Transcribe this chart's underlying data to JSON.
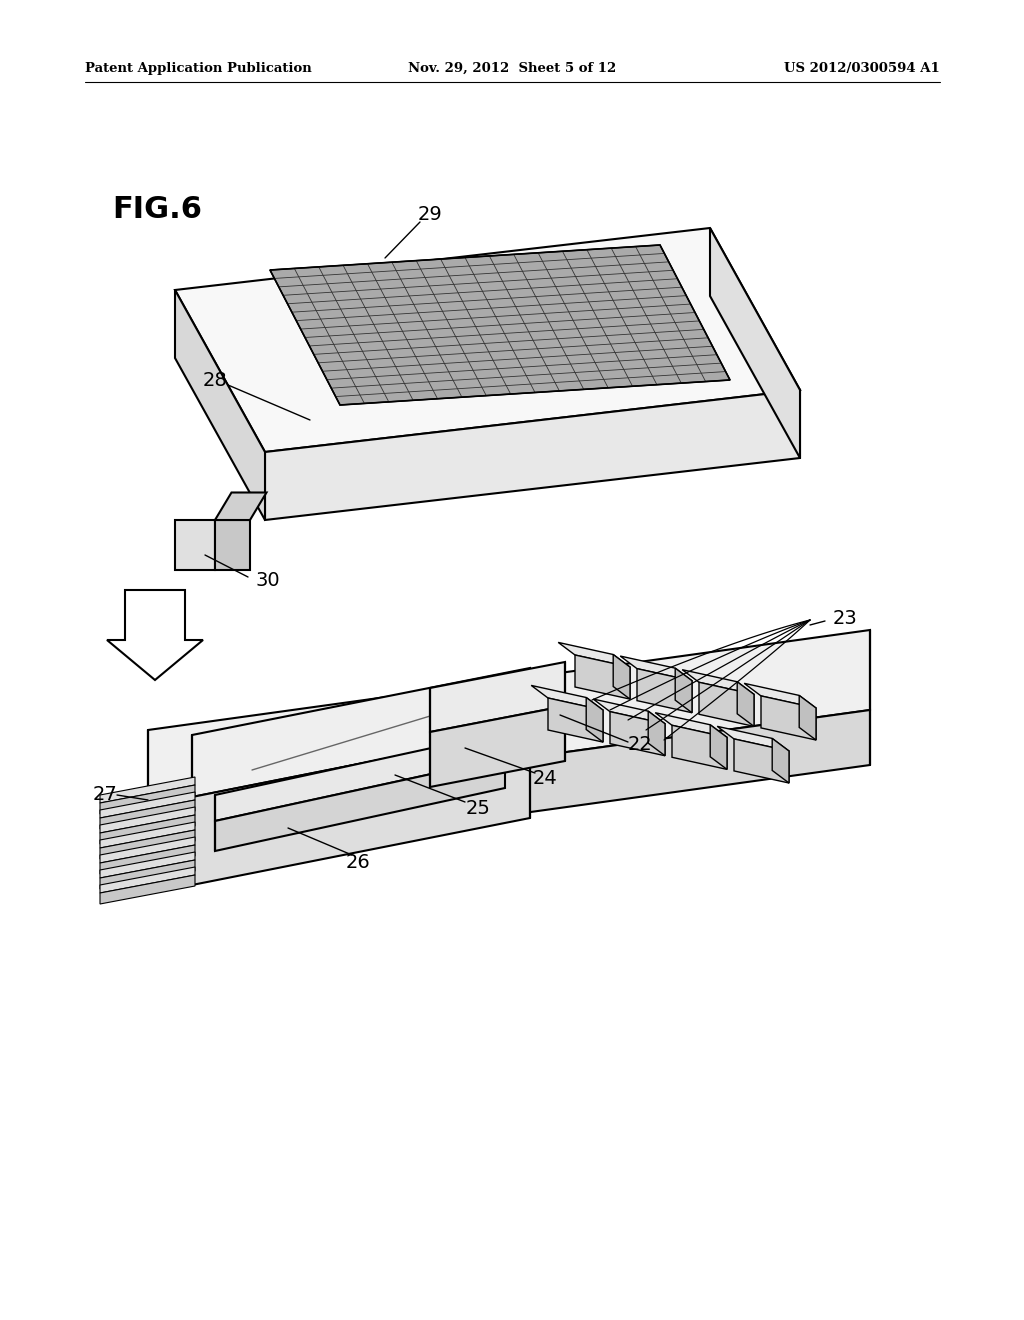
{
  "header_left": "Patent Application Publication",
  "header_center": "Nov. 29, 2012  Sheet 5 of 12",
  "header_right": "US 2012/0300594 A1",
  "title": "FIG.6",
  "bg_color": "#ffffff",
  "lc": "#000000",
  "top_face_color": "#f5f5f5",
  "side_face_color": "#e0e0e0",
  "dark_face_color": "#cccccc",
  "mesh_color": "#888888",
  "mesh_line_color": "#444444"
}
